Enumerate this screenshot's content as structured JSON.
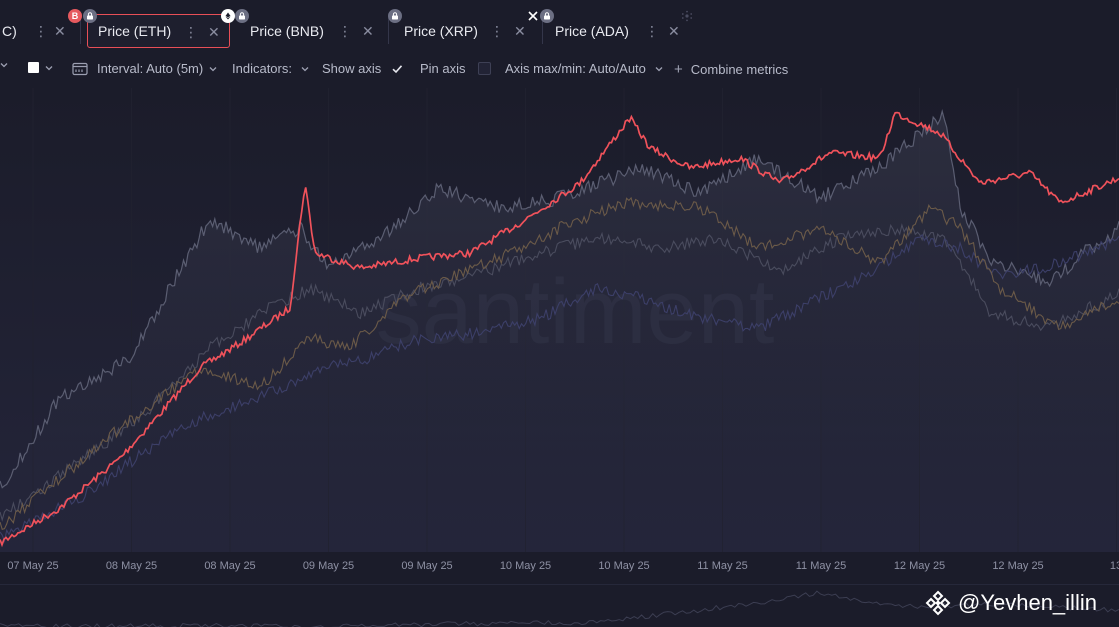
{
  "tabs": [
    {
      "id": "btc",
      "label": "C)",
      "partial": true,
      "active": false
    },
    {
      "id": "eth",
      "label": "Price (ETH)",
      "active": true
    },
    {
      "id": "bnb",
      "label": "Price (BNB)",
      "active": false
    },
    {
      "id": "xrp",
      "label": "Price (XRP)",
      "active": false
    },
    {
      "id": "ada",
      "label": "Price (ADA)",
      "active": false
    }
  ],
  "tab_menu_glyph": "⋮",
  "tab_close_glyph": "✕",
  "toolbar": {
    "interval_label": "Interval: Auto (5m)",
    "indicators_label": "Indicators:",
    "show_axis_label": "Show axis",
    "show_axis_checked": true,
    "pin_axis_label": "Pin axis",
    "pin_axis_checked": false,
    "axis_minmax_label": "Axis max/min: Auto/Auto",
    "combine_metrics_label": "Combine metrics",
    "plus_glyph": "+"
  },
  "chart_data": {
    "type": "line",
    "x_tick_labels": [
      "07 May 25",
      "08 May 25",
      "08 May 25",
      "09 May 25",
      "09 May 25",
      "10 May 25",
      "10 May 25",
      "11 May 25",
      "11 May 25",
      "12 May 25",
      "12 May 25",
      "13"
    ],
    "y_axis_shown": false,
    "series": [
      {
        "id": "eth",
        "color": "#f0525b",
        "highlighted": true
      },
      {
        "id": "btc",
        "color": "#5b5e72"
      },
      {
        "id": "bnb",
        "color": "#6b5a48"
      },
      {
        "id": "xrp",
        "color": "#3c3f68"
      },
      {
        "id": "ada",
        "color": "#4a4c5e"
      }
    ],
    "watermark": "santiment"
  },
  "colors": {
    "background": "#1b1c2a",
    "accent": "#e84f57",
    "btc_badge": "#e65a5f",
    "lock_badge": "#6c6f83"
  },
  "footer_handle": "@Yevhen_illin"
}
